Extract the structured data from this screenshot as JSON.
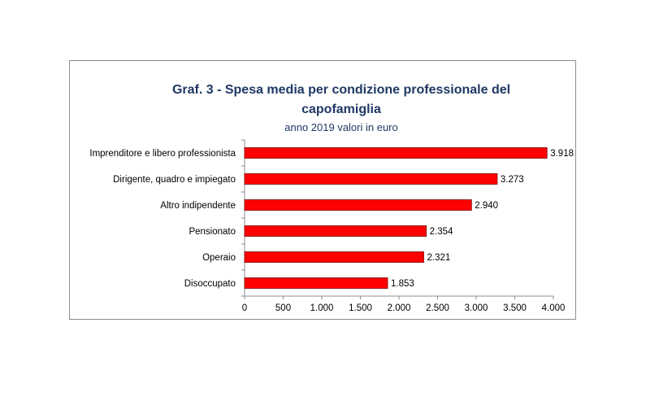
{
  "chart_data": {
    "type": "bar",
    "orientation": "horizontal",
    "title": "Graf. 3 - Spesa media per condizione professionale del capofamiglia",
    "subtitle": "anno 2019  valori in euro",
    "categories": [
      "Imprenditore e libero professionista",
      "Dirigente, quadro e impiegato",
      "Altro indipendente",
      "Pensionato",
      "Operaio",
      "Disoccupato"
    ],
    "values": [
      3918,
      3273,
      2940,
      2354,
      2321,
      1853
    ],
    "value_labels": [
      "3.918",
      "3.273",
      "2.940",
      "2.354",
      "2.321",
      "1.853"
    ],
    "xlim": [
      0,
      4000
    ],
    "xticks": [
      0,
      500,
      1000,
      1500,
      2000,
      2500,
      3000,
      3500,
      4000
    ],
    "xtick_labels": [
      "0",
      "500",
      "1.000",
      "1.500",
      "2.000",
      "2.500",
      "3.000",
      "3.500",
      "4.000"
    ],
    "grid": false,
    "bar_color": "#ff0000",
    "bar_border_color": "#7f0000",
    "title_color": "#1f3864"
  }
}
